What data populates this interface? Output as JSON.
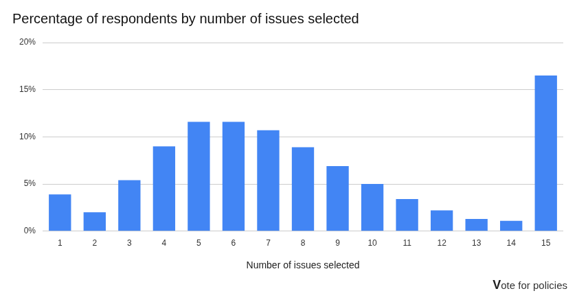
{
  "chart_data": {
    "type": "bar",
    "title": "Percentage of respondents by number of issues selected",
    "x_label": "Number of issues selected",
    "categories": [
      "1",
      "2",
      "3",
      "4",
      "5",
      "6",
      "7",
      "8",
      "9",
      "10",
      "11",
      "12",
      "13",
      "14",
      "15"
    ],
    "values": [
      3.9,
      2.0,
      5.4,
      9.0,
      11.6,
      11.6,
      10.7,
      8.9,
      6.9,
      5.0,
      3.4,
      2.2,
      1.3,
      1.1,
      16.5
    ],
    "color": "#4285f4",
    "ylim": [
      0,
      20
    ],
    "yticks": [
      {
        "value": 0,
        "label": "0%"
      },
      {
        "value": 5,
        "label": "5%"
      },
      {
        "value": 10,
        "label": "10%"
      },
      {
        "value": 15,
        "label": "15%"
      },
      {
        "value": 20,
        "label": "20%"
      }
    ],
    "grid": true,
    "annotations": [
      "Vote for policies"
    ]
  }
}
